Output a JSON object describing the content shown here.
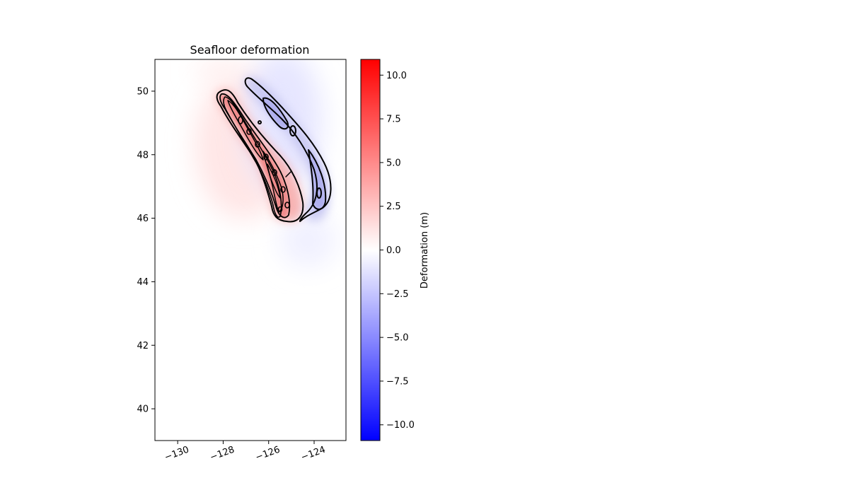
{
  "chart_data": {
    "type": "heatmap",
    "title": "Seafloor deformation",
    "xlabel": "",
    "ylabel": "",
    "xlim": [
      -131,
      -122.6
    ],
    "ylim": [
      39,
      51
    ],
    "xticks": [
      -130,
      -128,
      -126,
      -124
    ],
    "xtick_labels": [
      "−130",
      "−128",
      "−126",
      "−124"
    ],
    "yticks": [
      40,
      42,
      44,
      46,
      48,
      50
    ],
    "ytick_labels": [
      "40",
      "42",
      "44",
      "46",
      "48",
      "50"
    ],
    "grid": false,
    "colormap": "bwr",
    "colorbar": {
      "label": "Deformation (m)",
      "range": [
        -10.9,
        10.9
      ],
      "ticks": [
        -10.0,
        -7.5,
        -5.0,
        -2.5,
        0.0,
        2.5,
        5.0,
        7.5,
        10.0
      ],
      "tick_labels": [
        "−10.0",
        "−7.5",
        "−5.0",
        "−2.5",
        "0.0",
        "2.5",
        "5.0",
        "7.5",
        "10.0"
      ],
      "colors": {
        "low": "#0000ff",
        "mid": "#ffffff",
        "high": "#ff0000"
      }
    },
    "uplift_band": [
      {
        "lon": -128.0,
        "lat": 49.9
      },
      {
        "lon": -127.3,
        "lat": 49.0
      },
      {
        "lon": -126.6,
        "lat": 48.1
      },
      {
        "lon": -126.0,
        "lat": 47.1
      },
      {
        "lon": -125.6,
        "lat": 46.0
      }
    ],
    "subsidence_band": [
      {
        "lon": -126.9,
        "lat": 50.3
      },
      {
        "lon": -125.7,
        "lat": 49.3
      },
      {
        "lon": -124.6,
        "lat": 48.2
      },
      {
        "lon": -123.9,
        "lat": 47.0
      },
      {
        "lon": -124.4,
        "lat": 46.0
      }
    ],
    "peak_uplift": 8.0,
    "peak_subsidence": -3.5,
    "contour_color": "#000000"
  }
}
